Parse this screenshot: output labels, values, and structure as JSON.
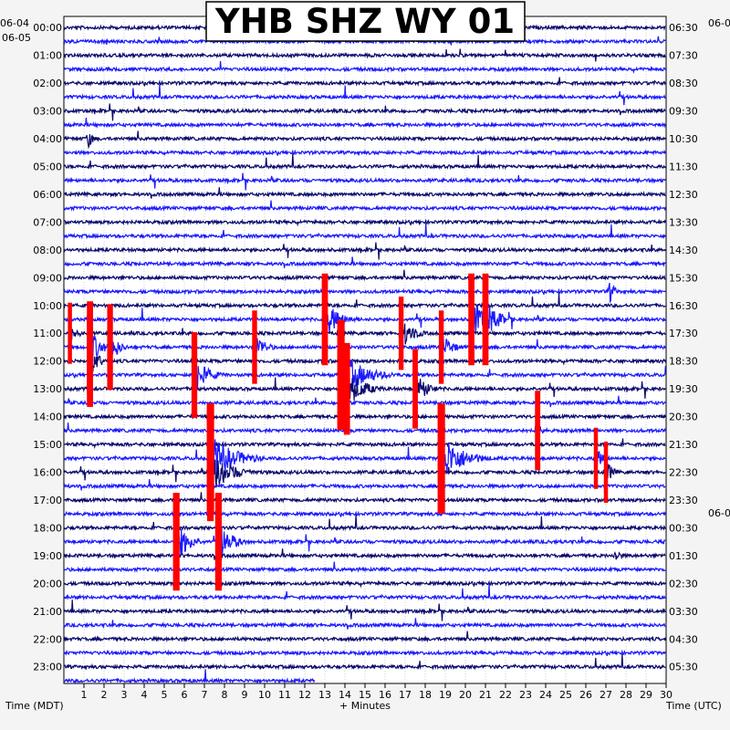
{
  "chart_data": {
    "type": "helicorder",
    "title": "YHB SHZ WY 01",
    "left_dates": [
      "06-04",
      "06-05"
    ],
    "right_dates": [
      "06-0",
      "06-0"
    ],
    "left_hour_labels": [
      "00:00",
      "01:00",
      "02:00",
      "03:00",
      "04:00",
      "05:00",
      "06:00",
      "07:00",
      "08:00",
      "09:00",
      "10:00",
      "11:00",
      "12:00",
      "13:00",
      "14:00",
      "15:00",
      "16:00",
      "17:00",
      "18:00",
      "19:00",
      "20:00",
      "21:00",
      "22:00",
      "23:00"
    ],
    "right_hour_labels": [
      "06:30",
      "07:30",
      "08:30",
      "09:30",
      "10:30",
      "11:30",
      "12:30",
      "13:30",
      "14:30",
      "15:30",
      "16:30",
      "17:30",
      "18:30",
      "19:30",
      "20:30",
      "21:30",
      "22:30",
      "23:30",
      "00:30",
      "01:30",
      "02:30",
      "03:30",
      "04:30",
      "05:30"
    ],
    "x_ticks": [
      "1",
      "2",
      "3",
      "4",
      "5",
      "6",
      "7",
      "8",
      "9",
      "10",
      "11",
      "12",
      "13",
      "14",
      "15",
      "16",
      "17",
      "18",
      "19",
      "20",
      "21",
      "22",
      "23",
      "24",
      "25",
      "26",
      "27",
      "28",
      "29",
      "30"
    ],
    "xlabel": "+ Minutes",
    "left_axis_label": "Time (MDT)",
    "right_axis_label": "Time (UTC)",
    "xlim": [
      0,
      30
    ],
    "traces_per_hour": 2,
    "trace_colors": [
      "#0a0a6e",
      "#1a1aff"
    ],
    "clipped_color": "#ff0000",
    "last_trace_minutes": 12.5,
    "events": [
      {
        "trace": 23,
        "minute": 1.3,
        "amp": 1.5,
        "dur": 1.2,
        "clip": true
      },
      {
        "trace": 24,
        "minute": 1.3,
        "amp": 1.5,
        "dur": 1.0,
        "clip": true
      },
      {
        "trace": 23,
        "minute": 2.3,
        "amp": 1.4,
        "dur": 1.0,
        "clip": true
      },
      {
        "trace": 22,
        "minute": 0.3,
        "amp": 1.0,
        "dur": 0.8,
        "clip": true
      },
      {
        "trace": 25,
        "minute": 6.5,
        "amp": 1.4,
        "dur": 1.6,
        "clip": true
      },
      {
        "trace": 31,
        "minute": 7.3,
        "amp": 1.8,
        "dur": 2.8,
        "clip": true
      },
      {
        "trace": 32,
        "minute": 7.3,
        "amp": 1.6,
        "dur": 2.5,
        "clip": true
      },
      {
        "trace": 37,
        "minute": 5.6,
        "amp": 1.6,
        "dur": 1.5,
        "clip": true
      },
      {
        "trace": 37,
        "minute": 7.7,
        "amp": 1.6,
        "dur": 1.5,
        "clip": true
      },
      {
        "trace": 23,
        "minute": 9.5,
        "amp": 1.2,
        "dur": 1.2,
        "clip": true
      },
      {
        "trace": 21,
        "minute": 13.0,
        "amp": 1.5,
        "dur": 1.8,
        "clip": true
      },
      {
        "trace": 25,
        "minute": 13.8,
        "amp": 1.8,
        "dur": 2.8,
        "clip": true
      },
      {
        "trace": 26,
        "minute": 14.1,
        "amp": 1.5,
        "dur": 2.0,
        "clip": true
      },
      {
        "trace": 22,
        "minute": 16.8,
        "amp": 1.2,
        "dur": 1.5,
        "clip": true
      },
      {
        "trace": 26,
        "minute": 17.5,
        "amp": 1.3,
        "dur": 1.4,
        "clip": true
      },
      {
        "trace": 23,
        "minute": 18.8,
        "amp": 1.2,
        "dur": 1.2,
        "clip": true
      },
      {
        "trace": 31,
        "minute": 18.8,
        "amp": 1.8,
        "dur": 2.6,
        "clip": true
      },
      {
        "trace": 21,
        "minute": 20.3,
        "amp": 1.5,
        "dur": 2.0,
        "clip": true
      },
      {
        "trace": 21,
        "minute": 21.0,
        "amp": 1.5,
        "dur": 1.6,
        "clip": true
      },
      {
        "trace": 8,
        "minute": 1.2,
        "amp": 0.8,
        "dur": 0.6,
        "clip": false
      },
      {
        "trace": 19,
        "minute": 27.2,
        "amp": 0.8,
        "dur": 0.7,
        "clip": false
      },
      {
        "trace": 29,
        "minute": 23.6,
        "amp": 1.3,
        "dur": 0.4,
        "clip": true
      },
      {
        "trace": 31,
        "minute": 26.5,
        "amp": 1.0,
        "dur": 0.8,
        "clip": true
      },
      {
        "trace": 32,
        "minute": 27.0,
        "amp": 1.0,
        "dur": 0.8,
        "clip": true
      },
      {
        "trace": 38,
        "minute": 27.5,
        "amp": 0.6,
        "dur": 0.6,
        "clip": false
      }
    ]
  }
}
